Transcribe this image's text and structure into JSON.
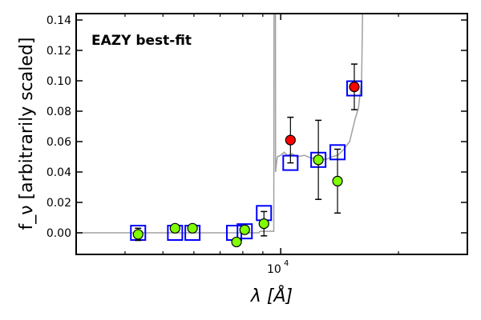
{
  "chart_data": {
    "type": "scatter",
    "title": "EAZY best-fit",
    "title_color": "#ff0000",
    "xlabel": "λ [Å]",
    "ylabel": "f_ν [arbitrarily scaled]",
    "xscale": "log",
    "xlim": [
      3000,
      30000
    ],
    "ylim": [
      -0.0142,
      0.1442
    ],
    "yticks": [
      0.0,
      0.02,
      0.04,
      0.06,
      0.08,
      0.1,
      0.12,
      0.14
    ],
    "ytick_labels": [
      "0.00",
      "0.02",
      "0.04",
      "0.06",
      "0.08",
      "0.10",
      "0.12",
      "0.14"
    ],
    "xtick_label_base": "10",
    "xtick_label_exp": "4",
    "xminor_ticks": [
      4000,
      5000,
      6000,
      7000,
      8000,
      9000,
      20000
    ],
    "grid": false,
    "series": [
      {
        "name": "observed (detected)",
        "color": "#7fff00",
        "points": [
          {
            "x": 4320,
            "y": -0.001,
            "err": 0.004
          },
          {
            "x": 5370,
            "y": 0.003,
            "err": 0.002
          },
          {
            "x": 5950,
            "y": 0.003,
            "err": 0.002
          },
          {
            "x": 7710,
            "y": -0.006,
            "err": 0.002
          },
          {
            "x": 8090,
            "y": 0.002,
            "err": 0.002
          },
          {
            "x": 9060,
            "y": 0.006,
            "err": 0.008
          },
          {
            "x": 12480,
            "y": 0.048,
            "err": 0.026
          },
          {
            "x": 13970,
            "y": 0.034,
            "err": 0.021
          }
        ]
      },
      {
        "name": "observed (highlighted)",
        "color": "#ff0000",
        "points": [
          {
            "x": 10590,
            "y": 0.061,
            "err": 0.015
          },
          {
            "x": 15420,
            "y": 0.096,
            "err": 0.015
          }
        ]
      },
      {
        "name": "model photometry",
        "color": "#0000ff",
        "marker": "square",
        "points": [
          {
            "x": 4320,
            "y": 0.0
          },
          {
            "x": 5370,
            "y": 0.0
          },
          {
            "x": 5950,
            "y": 0.0
          },
          {
            "x": 7600,
            "y": 0.0
          },
          {
            "x": 8090,
            "y": 0.001
          },
          {
            "x": 9060,
            "y": 0.013
          },
          {
            "x": 10590,
            "y": 0.046
          },
          {
            "x": 12480,
            "y": 0.048
          },
          {
            "x": 13970,
            "y": 0.053
          },
          {
            "x": 15420,
            "y": 0.095
          }
        ]
      },
      {
        "name": "EAZY template",
        "color": "#a0a0a0",
        "type": "line",
        "points": [
          [
            3000,
            0
          ],
          [
            8800,
            0
          ],
          [
            8850,
            0.001
          ],
          [
            9600,
            0.001
          ],
          [
            9620,
            0.2
          ],
          [
            9690,
            0.2
          ],
          [
            9700,
            0.04
          ],
          [
            9800,
            0.05
          ],
          [
            10000,
            0.051
          ],
          [
            10200,
            0.053
          ],
          [
            10400,
            0.051
          ],
          [
            10700,
            0.052
          ],
          [
            11000,
            0.05
          ],
          [
            11500,
            0.051
          ],
          [
            12000,
            0.049
          ],
          [
            12500,
            0.05
          ],
          [
            13000,
            0.048
          ],
          [
            13500,
            0.05
          ],
          [
            14000,
            0.051
          ],
          [
            14500,
            0.055
          ],
          [
            15000,
            0.06
          ],
          [
            15500,
            0.075
          ],
          [
            15800,
            0.082
          ],
          [
            16100,
            0.1
          ],
          [
            16300,
            0.2
          ]
        ]
      }
    ]
  }
}
